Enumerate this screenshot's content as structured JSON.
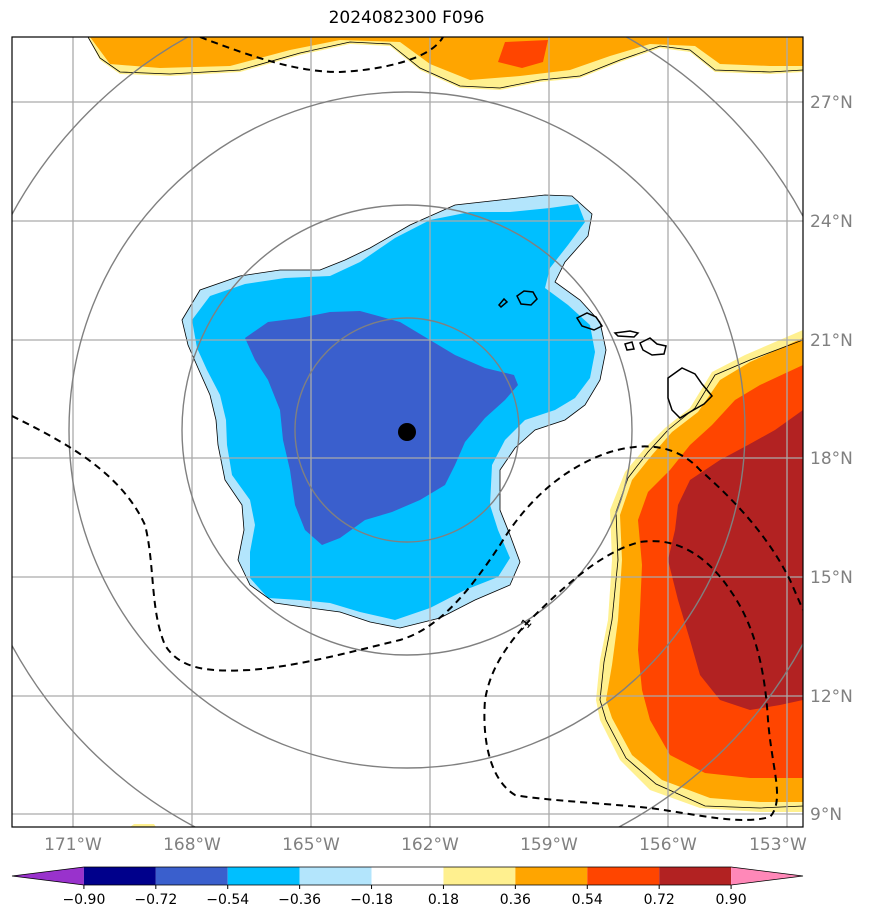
{
  "title": "2024082300 F096",
  "map": {
    "lat_labels": [
      "27°N",
      "24°N",
      "21°N",
      "18°N",
      "15°N",
      "12°N",
      "9°N"
    ],
    "lon_labels": [
      "171°W",
      "168°W",
      "165°W",
      "162°W",
      "159°W",
      "156°W",
      "153°W"
    ],
    "center_marker": {
      "lon": -162.6,
      "lat": 18.6
    },
    "contour_label": "-1",
    "range_rings": 4,
    "gridline_color": "#aaaaaa",
    "coastline_color": "#000000"
  },
  "colorbar": {
    "tick_labels": [
      "−0.90",
      "−0.72",
      "−0.54",
      "−0.36",
      "−0.18",
      "0.18",
      "0.36",
      "0.54",
      "0.72",
      "0.90"
    ],
    "colors": [
      "#9932cc",
      "#00008b",
      "#3a5fcd",
      "#00bfff",
      "#b3e5fc",
      "#ffffff",
      "#fff08f",
      "#ffa500",
      "#ff4500",
      "#b22222",
      "#ff88b8"
    ],
    "extend": "both"
  }
}
